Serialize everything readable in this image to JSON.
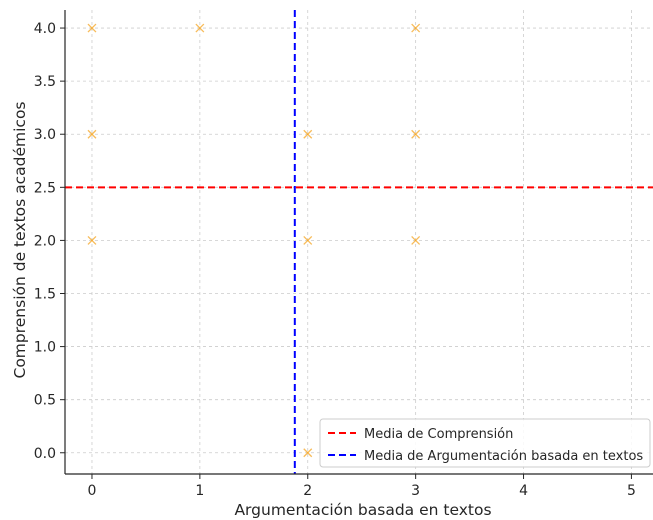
{
  "chart_data": {
    "type": "scatter",
    "title": "",
    "xlabel": "Argumentación basada en textos",
    "ylabel": "Comprensión de textos académicos",
    "xlim": [
      -0.25,
      5.2
    ],
    "ylim": [
      -0.2,
      4.17
    ],
    "xticks": [
      0,
      1,
      2,
      3,
      4,
      5
    ],
    "yticks": [
      0.0,
      0.5,
      1.0,
      1.5,
      2.0,
      2.5,
      3.0,
      3.5,
      4.0
    ],
    "xtick_labels": [
      "0",
      "1",
      "2",
      "3",
      "4",
      "5"
    ],
    "ytick_labels": [
      "0.0",
      "0.5",
      "1.0",
      "1.5",
      "2.0",
      "2.5",
      "3.0",
      "3.5",
      "4.0"
    ],
    "grid": true,
    "marker": "x",
    "point_color": "#f5a623",
    "points": [
      {
        "x": 0,
        "y": 4
      },
      {
        "x": 1,
        "y": 4
      },
      {
        "x": 3,
        "y": 4
      },
      {
        "x": 0,
        "y": 3
      },
      {
        "x": 2,
        "y": 3
      },
      {
        "x": 3,
        "y": 3
      },
      {
        "x": 0,
        "y": 2
      },
      {
        "x": 2,
        "y": 2
      },
      {
        "x": 3,
        "y": 2
      },
      {
        "x": 2,
        "y": 0
      }
    ],
    "reference_lines": [
      {
        "orientation": "horizontal",
        "value": 2.5,
        "color": "#ff0000",
        "style": "dashed",
        "name": "Media de Comprensión"
      },
      {
        "orientation": "vertical",
        "value": 1.88,
        "color": "#0000ff",
        "style": "dashed",
        "name": "Media de Argumentación basada en textos"
      }
    ],
    "legend": {
      "placement": "bottom-right",
      "entries": [
        "Media de Comprensión",
        "Media de Argumentación basada en textos"
      ]
    }
  }
}
